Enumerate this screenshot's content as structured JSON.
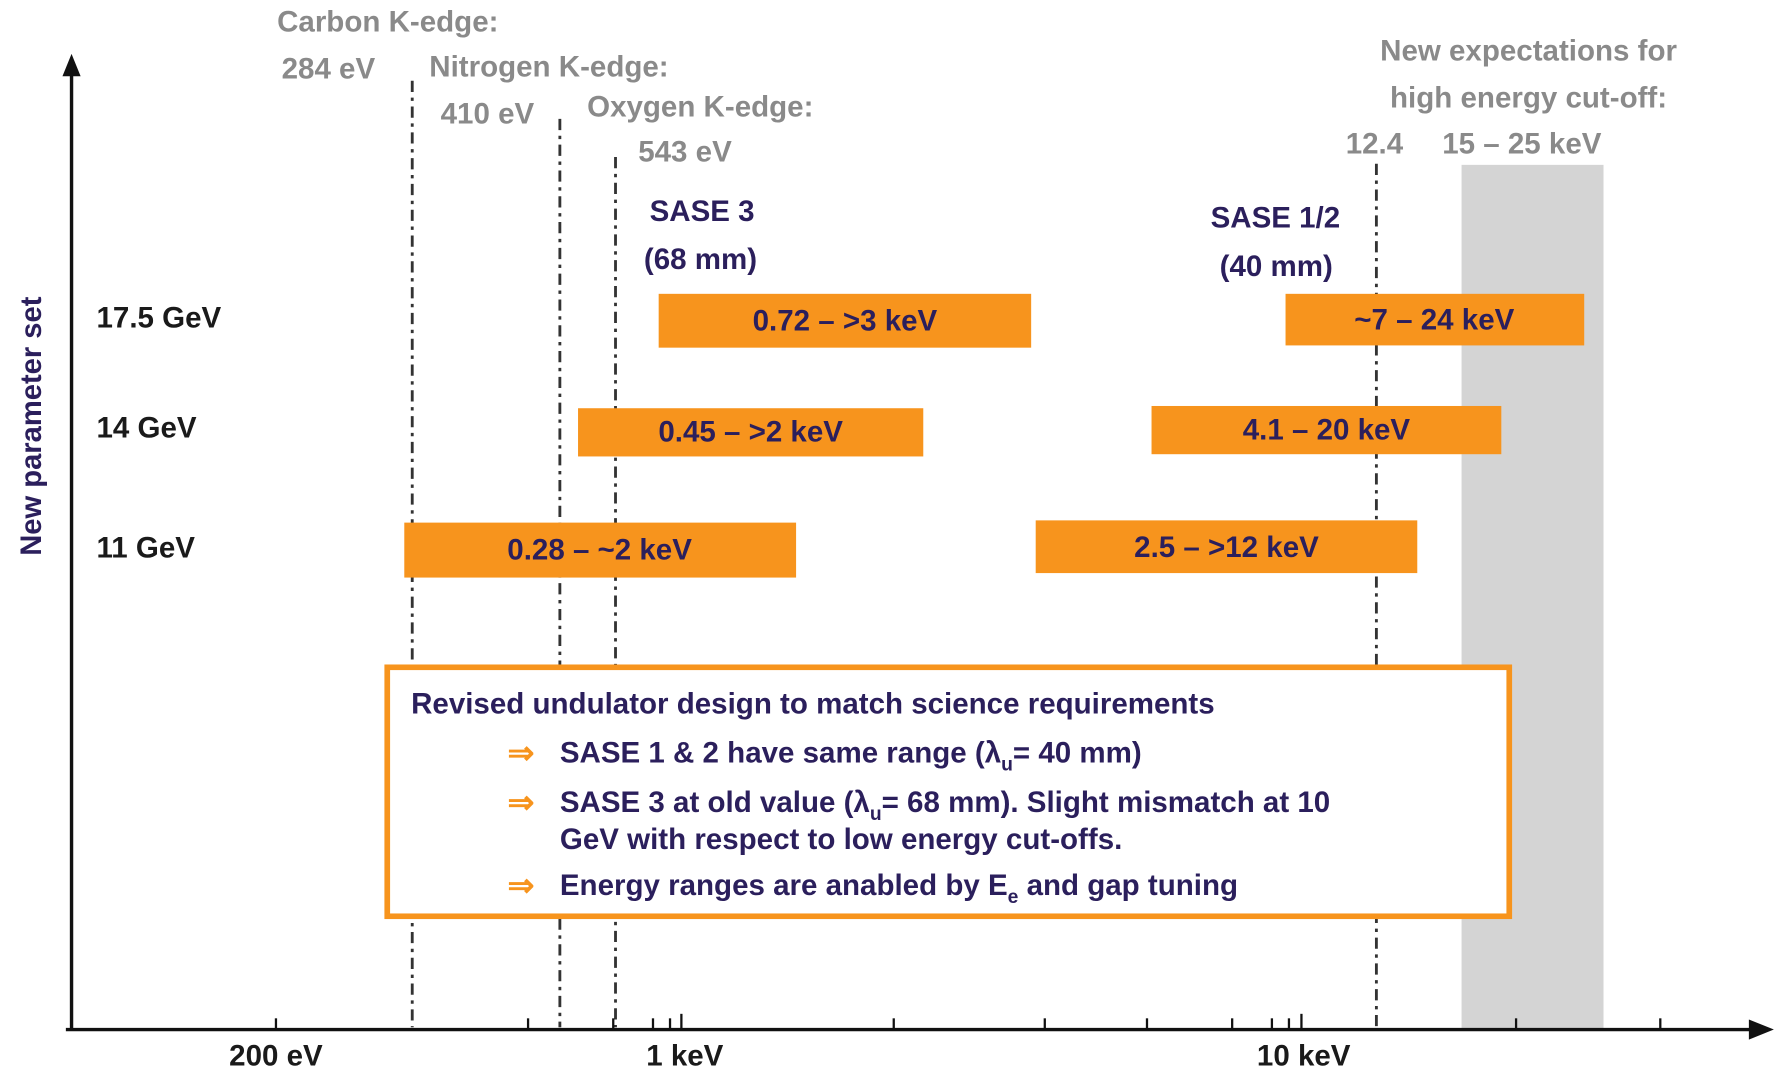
{
  "edges": [
    {
      "name": "Carbon K-edge:",
      "value": "284 eV"
    },
    {
      "name": "Nitrogen K-edge:",
      "value": "410 eV"
    },
    {
      "name": "Oxygen K-edge:",
      "value": "543 eV"
    }
  ],
  "cutoff": {
    "title": [
      "New expectations for",
      "high energy cut-off:"
    ],
    "marker": "12.4",
    "range": "15 – 25 keV"
  },
  "undulators": [
    {
      "name": "SASE 3",
      "period": "(68 mm)"
    },
    {
      "name": "SASE 1/2",
      "period": "(40 mm)"
    }
  ],
  "y_axis_label": "New parameter set",
  "rows": [
    {
      "label": "17.5 GeV",
      "ranges": [
        "0.72 –  >3 keV",
        "~7 – 24 keV"
      ]
    },
    {
      "label": "14 GeV",
      "ranges": [
        "0.45 –  >2 keV",
        "4.1 – 20 keV"
      ]
    },
    {
      "label": "11 GeV",
      "ranges": [
        "0.28 –  ~2 keV",
        "2.5 –  >12 keV"
      ]
    }
  ],
  "x_ticks": [
    "200 eV",
    "1 keV",
    "10 keV"
  ],
  "note": {
    "title": "Revised undulator design to match science requirements",
    "bullet_symbol": "⇒",
    "bullets": [
      {
        "before": "SASE 1 & 2 have same range (λ",
        "sub": "u",
        "after": "= 40 mm)"
      },
      {
        "before": "SASE 3 at old value (λ",
        "sub": "u",
        "after": "= 68 mm). Slight mismatch at 10",
        "continuation": "GeV with respect to low energy cut-offs."
      },
      {
        "before": "Energy ranges are anabled by E",
        "sub": "e",
        "after": " and gap tuning"
      }
    ]
  }
}
